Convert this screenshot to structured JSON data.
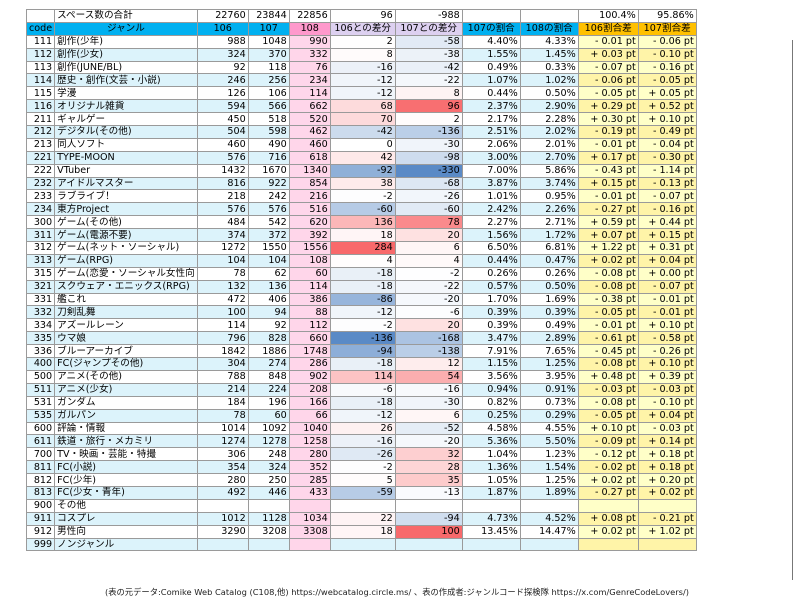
{
  "summary": {
    "label": "スペース数の合計",
    "v106": "22760",
    "v107": "23844",
    "v108": "22856",
    "d106": "96",
    "d107": "-988",
    "r107": "",
    "r108": "",
    "p106": "100.4%",
    "p107": "95.86%"
  },
  "headers": {
    "code": "code",
    "genre": "ジャンル",
    "v106": "106",
    "v107": "107",
    "v108": "108",
    "d106": "106との差分",
    "d107": "107との差分",
    "r107": "107の割合",
    "r108": "108の割合",
    "p106": "106割合差",
    "p107": "107割合差"
  },
  "rows": [
    [
      "111",
      "創作(少年)",
      "988",
      "1048",
      "990",
      "2",
      "-58",
      "4.40%",
      "4.33%",
      "- 0.01 pt",
      "- 0.06 pt"
    ],
    [
      "112",
      "創作(少女)",
      "324",
      "370",
      "332",
      "8",
      "-38",
      "1.55%",
      "1.45%",
      "+ 0.03 pt",
      "- 0.10 pt"
    ],
    [
      "113",
      "創作(JUNE/BL)",
      "92",
      "118",
      "76",
      "-16",
      "-42",
      "0.49%",
      "0.33%",
      "- 0.07 pt",
      "- 0.16 pt"
    ],
    [
      "114",
      "歴史・創作(文芸・小説)",
      "246",
      "256",
      "234",
      "-12",
      "-22",
      "1.07%",
      "1.02%",
      "- 0.06 pt",
      "- 0.05 pt"
    ],
    [
      "115",
      "学漫",
      "126",
      "106",
      "114",
      "-12",
      "8",
      "0.44%",
      "0.50%",
      "- 0.05 pt",
      "+ 0.05 pt"
    ],
    [
      "116",
      "オリジナル雑貨",
      "594",
      "566",
      "662",
      "68",
      "96",
      "2.37%",
      "2.90%",
      "+ 0.29 pt",
      "+ 0.52 pt"
    ],
    [
      "211",
      "ギャルゲー",
      "450",
      "518",
      "520",
      "70",
      "2",
      "2.17%",
      "2.28%",
      "+ 0.30 pt",
      "+ 0.10 pt"
    ],
    [
      "212",
      "デジタル(その他)",
      "504",
      "598",
      "462",
      "-42",
      "-136",
      "2.51%",
      "2.02%",
      "- 0.19 pt",
      "- 0.49 pt"
    ],
    [
      "213",
      "同人ソフト",
      "460",
      "490",
      "460",
      "0",
      "-30",
      "2.06%",
      "2.01%",
      "- 0.01 pt",
      "- 0.04 pt"
    ],
    [
      "221",
      "TYPE-MOON",
      "576",
      "716",
      "618",
      "42",
      "-98",
      "3.00%",
      "2.70%",
      "+ 0.17 pt",
      "- 0.30 pt"
    ],
    [
      "222",
      "VTuber",
      "1432",
      "1670",
      "1340",
      "-92",
      "-330",
      "7.00%",
      "5.86%",
      "- 0.43 pt",
      "- 1.14 pt"
    ],
    [
      "232",
      "アイドルマスター",
      "816",
      "922",
      "854",
      "38",
      "-68",
      "3.87%",
      "3.74%",
      "+ 0.15 pt",
      "- 0.13 pt"
    ],
    [
      "233",
      "ラブライブ！",
      "218",
      "242",
      "216",
      "-2",
      "-26",
      "1.01%",
      "0.95%",
      "- 0.01 pt",
      "- 0.07 pt"
    ],
    [
      "234",
      "東方Project",
      "576",
      "576",
      "516",
      "-60",
      "-60",
      "2.42%",
      "2.26%",
      "- 0.27 pt",
      "- 0.16 pt"
    ],
    [
      "300",
      "ゲーム(その他)",
      "484",
      "542",
      "620",
      "136",
      "78",
      "2.27%",
      "2.71%",
      "+ 0.59 pt",
      "+ 0.44 pt"
    ],
    [
      "311",
      "ゲーム(電源不要)",
      "374",
      "372",
      "392",
      "18",
      "20",
      "1.56%",
      "1.72%",
      "+ 0.07 pt",
      "+ 0.15 pt"
    ],
    [
      "312",
      "ゲーム(ネット・ソーシャル)",
      "1272",
      "1550",
      "1556",
      "284",
      "6",
      "6.50%",
      "6.81%",
      "+ 1.22 pt",
      "+ 0.31 pt"
    ],
    [
      "313",
      "ゲーム(RPG)",
      "104",
      "104",
      "108",
      "4",
      "4",
      "0.44%",
      "0.47%",
      "+ 0.02 pt",
      "+ 0.04 pt"
    ],
    [
      "315",
      "ゲーム(恋愛・ソーシャル女性向",
      "78",
      "62",
      "60",
      "-18",
      "-2",
      "0.26%",
      "0.26%",
      "- 0.08 pt",
      "+ 0.00 pt"
    ],
    [
      "321",
      "スクウェア・エニックス(RPG)",
      "132",
      "136",
      "114",
      "-18",
      "-22",
      "0.57%",
      "0.50%",
      "- 0.08 pt",
      "- 0.07 pt"
    ],
    [
      "331",
      "艦これ",
      "472",
      "406",
      "386",
      "-86",
      "-20",
      "1.70%",
      "1.69%",
      "- 0.38 pt",
      "- 0.01 pt"
    ],
    [
      "332",
      "刀剣乱舞",
      "100",
      "94",
      "88",
      "-12",
      "-6",
      "0.39%",
      "0.39%",
      "- 0.05 pt",
      "- 0.01 pt"
    ],
    [
      "334",
      "アズールレーン",
      "114",
      "92",
      "112",
      "-2",
      "20",
      "0.39%",
      "0.49%",
      "- 0.01 pt",
      "+ 0.10 pt"
    ],
    [
      "335",
      "ウマ娘",
      "796",
      "828",
      "660",
      "-136",
      "-168",
      "3.47%",
      "2.89%",
      "- 0.61 pt",
      "- 0.58 pt"
    ],
    [
      "336",
      "ブルーアーカイブ",
      "1842",
      "1886",
      "1748",
      "-94",
      "-138",
      "7.91%",
      "7.65%",
      "- 0.45 pt",
      "- 0.26 pt"
    ],
    [
      "400",
      "FC(ジャンプその他)",
      "304",
      "274",
      "286",
      "-18",
      "12",
      "1.15%",
      "1.25%",
      "- 0.08 pt",
      "+ 0.10 pt"
    ],
    [
      "500",
      "アニメ(その他)",
      "788",
      "848",
      "902",
      "114",
      "54",
      "3.56%",
      "3.95%",
      "+ 0.48 pt",
      "+ 0.39 pt"
    ],
    [
      "511",
      "アニメ(少女)",
      "214",
      "224",
      "208",
      "-6",
      "-16",
      "0.94%",
      "0.91%",
      "- 0.03 pt",
      "- 0.03 pt"
    ],
    [
      "531",
      "ガンダム",
      "184",
      "196",
      "166",
      "-18",
      "-30",
      "0.82%",
      "0.73%",
      "- 0.08 pt",
      "- 0.10 pt"
    ],
    [
      "535",
      "ガルパン",
      "78",
      "60",
      "66",
      "-12",
      "6",
      "0.25%",
      "0.29%",
      "- 0.05 pt",
      "+ 0.04 pt"
    ],
    [
      "600",
      "評論・情報",
      "1014",
      "1092",
      "1040",
      "26",
      "-52",
      "4.58%",
      "4.55%",
      "+ 0.10 pt",
      "- 0.03 pt"
    ],
    [
      "611",
      "鉄道・旅行・メカミリ",
      "1274",
      "1278",
      "1258",
      "-16",
      "-20",
      "5.36%",
      "5.50%",
      "- 0.09 pt",
      "+ 0.14 pt"
    ],
    [
      "700",
      "TV・映画・芸能・特撮",
      "306",
      "248",
      "280",
      "-26",
      "32",
      "1.04%",
      "1.23%",
      "- 0.12 pt",
      "+ 0.18 pt"
    ],
    [
      "811",
      "FC(小説)",
      "354",
      "324",
      "352",
      "-2",
      "28",
      "1.36%",
      "1.54%",
      "- 0.02 pt",
      "+ 0.18 pt"
    ],
    [
      "812",
      "FC(少年)",
      "280",
      "250",
      "285",
      "5",
      "35",
      "1.05%",
      "1.25%",
      "+ 0.02 pt",
      "+ 0.20 pt"
    ],
    [
      "813",
      "FC(少女・青年)",
      "492",
      "446",
      "433",
      "-59",
      "-13",
      "1.87%",
      "1.89%",
      "- 0.27 pt",
      "+ 0.02 pt"
    ],
    [
      "900",
      "その他",
      "",
      "",
      "",
      "",
      "",
      "",
      "",
      "",
      ""
    ],
    [
      "911",
      "コスプレ",
      "1012",
      "1128",
      "1034",
      "22",
      "-94",
      "4.73%",
      "4.52%",
      "+ 0.08 pt",
      "- 0.21 pt"
    ],
    [
      "912",
      "男性向",
      "3290",
      "3208",
      "3308",
      "18",
      "100",
      "13.45%",
      "14.47%",
      "+ 0.02 pt",
      "+ 1.02 pt"
    ],
    [
      "999",
      "ノンジャンル",
      "",
      "",
      "",
      "",
      "",
      "",
      "",
      "",
      ""
    ]
  ],
  "heat": {
    "positive": "#f8696b",
    "negative": "#5a8ac6",
    "neutral": "#ffffff"
  },
  "footer": "(表の元データ:Comike Web Catalog (C108,他) https://webcatalog.circle.ms/ 、表の作成者:ジャンルコード探検隊 https://x.com/GenreCodeLovers/)"
}
